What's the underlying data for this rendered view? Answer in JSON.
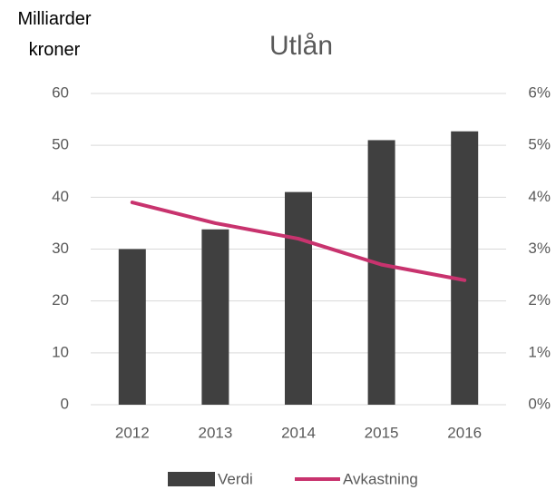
{
  "chart_data": {
    "type": "bar_line",
    "title": "Utlån",
    "ylabel": "Milliarder kroner",
    "categories": [
      "2012",
      "2013",
      "2014",
      "2015",
      "2016"
    ],
    "series": [
      {
        "name": "Verdi",
        "color": "#404040",
        "type": "bar",
        "values": [
          30,
          33.8,
          41,
          51,
          52.7
        ]
      },
      {
        "name": "Avkastning",
        "color": "#c8336e",
        "type": "line",
        "axis": "y2",
        "values": [
          3.9,
          3.5,
          3.2,
          2.7,
          2.4
        ]
      }
    ],
    "ylim": [
      0,
      60
    ],
    "yticks": [
      0,
      10,
      20,
      30,
      40,
      50,
      60
    ],
    "y2lim": [
      0,
      6
    ],
    "y2ticks": [
      {
        "value": 0,
        "label": "0%"
      },
      {
        "value": 1,
        "label": "1%"
      },
      {
        "value": 2,
        "label": "2%"
      },
      {
        "value": 3,
        "label": "3%"
      },
      {
        "value": 4,
        "label": "4%"
      },
      {
        "value": 5,
        "label": "5%"
      },
      {
        "value": 6,
        "label": "6%"
      }
    ],
    "grid": true,
    "legend": "bottom"
  }
}
